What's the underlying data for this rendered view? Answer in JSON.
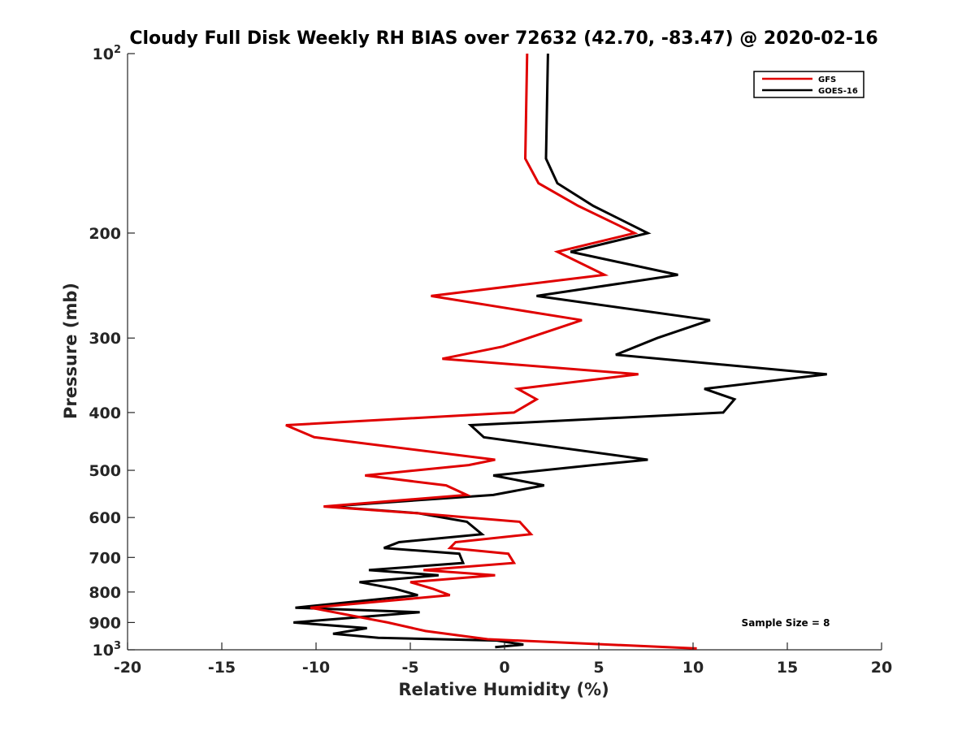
{
  "chart_data": {
    "type": "line",
    "title": "Cloudy Full Disk Weekly RH BIAS over 72632 (42.70, -83.47) @ 2020-02-16",
    "xlabel": "Relative Humidity (%)",
    "ylabel": "Pressure (mb)",
    "xlim": [
      -20,
      20
    ],
    "ylim": [
      100,
      1000
    ],
    "y_scale": "log",
    "y_reversed": true,
    "grid": false,
    "legend_position": "top-right",
    "x_ticks": [
      -20,
      -15,
      -10,
      -5,
      0,
      5,
      10,
      15,
      20
    ],
    "y_ticks": [
      {
        "value": 100,
        "base": "10",
        "exp": "2"
      },
      {
        "value": 200,
        "label": "200"
      },
      {
        "value": 300,
        "label": "300"
      },
      {
        "value": 400,
        "label": "400"
      },
      {
        "value": 500,
        "label": "500"
      },
      {
        "value": 600,
        "label": "600"
      },
      {
        "value": 700,
        "label": "700"
      },
      {
        "value": 800,
        "label": "800"
      },
      {
        "value": 900,
        "label": "900"
      },
      {
        "value": 1000,
        "base": "10",
        "exp": "3"
      }
    ],
    "annotation": "Sample Size = 8",
    "series": [
      {
        "name": "GFS",
        "color": "#e00000",
        "points": [
          [
            1.2,
            100
          ],
          [
            1.1,
            150
          ],
          [
            1.8,
            165
          ],
          [
            3.9,
            180
          ],
          [
            6.9,
            200
          ],
          [
            2.8,
            215
          ],
          [
            5.3,
            235
          ],
          [
            -3.9,
            255
          ],
          [
            4.1,
            280
          ],
          [
            -0.1,
            310
          ],
          [
            -3.3,
            325
          ],
          [
            7.1,
            345
          ],
          [
            0.7,
            365
          ],
          [
            1.7,
            380
          ],
          [
            0.5,
            400
          ],
          [
            -11.6,
            420
          ],
          [
            -10.1,
            440
          ],
          [
            -0.5,
            480
          ],
          [
            -1.9,
            490
          ],
          [
            -7.4,
            510
          ],
          [
            -3.1,
            530
          ],
          [
            -2.0,
            550
          ],
          [
            -9.6,
            575
          ],
          [
            -4.7,
            590
          ],
          [
            0.8,
            610
          ],
          [
            1.4,
            640
          ],
          [
            -2.6,
            660
          ],
          [
            -2.9,
            675
          ],
          [
            0.2,
            690
          ],
          [
            0.5,
            715
          ],
          [
            -4.3,
            735
          ],
          [
            -0.5,
            750
          ],
          [
            -5.0,
            770
          ],
          [
            -3.8,
            790
          ],
          [
            -2.9,
            810
          ],
          [
            -10.3,
            850
          ],
          [
            -6.2,
            900
          ],
          [
            -4.2,
            930
          ],
          [
            -0.9,
            960
          ],
          [
            10.2,
            995
          ]
        ]
      },
      {
        "name": "GOES-16",
        "color": "#000000",
        "points": [
          [
            2.3,
            100
          ],
          [
            2.2,
            150
          ],
          [
            2.8,
            165
          ],
          [
            4.7,
            180
          ],
          [
            7.6,
            200
          ],
          [
            3.5,
            215
          ],
          [
            9.2,
            235
          ],
          [
            1.7,
            255
          ],
          [
            10.9,
            280
          ],
          [
            8.1,
            300
          ],
          [
            5.9,
            320
          ],
          [
            17.1,
            345
          ],
          [
            10.6,
            365
          ],
          [
            12.2,
            380
          ],
          [
            11.6,
            400
          ],
          [
            -1.8,
            420
          ],
          [
            -1.1,
            440
          ],
          [
            7.6,
            480
          ],
          [
            4.7,
            490
          ],
          [
            -0.6,
            510
          ],
          [
            2.1,
            530
          ],
          [
            -0.6,
            550
          ],
          [
            -9.4,
            575
          ],
          [
            -4.6,
            590
          ],
          [
            -2.0,
            610
          ],
          [
            -1.2,
            640
          ],
          [
            -5.6,
            660
          ],
          [
            -6.4,
            675
          ],
          [
            -2.4,
            690
          ],
          [
            -2.2,
            715
          ],
          [
            -7.2,
            735
          ],
          [
            -3.5,
            750
          ],
          [
            -7.7,
            770
          ],
          [
            -5.8,
            790
          ],
          [
            -4.6,
            810
          ],
          [
            -11.1,
            850
          ],
          [
            -4.5,
            865
          ],
          [
            -11.2,
            900
          ],
          [
            -7.3,
            920
          ],
          [
            -9.1,
            940
          ],
          [
            -6.7,
            955
          ],
          [
            -0.4,
            965
          ],
          [
            1.0,
            980
          ],
          [
            -0.5,
            990
          ]
        ]
      }
    ]
  }
}
